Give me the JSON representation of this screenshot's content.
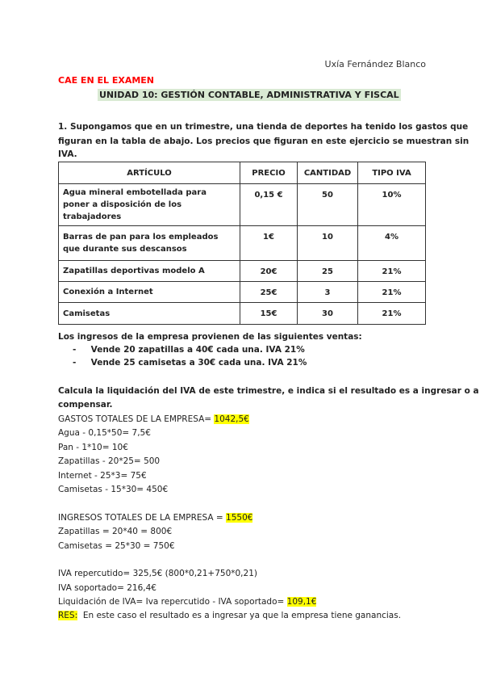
{
  "author": "Uxía Fernández Blanco",
  "tag": "CAE EN EL EXAMEN",
  "unit_title": "UNIDAD 10: GESTIÓN CONTABLE, ADMINISTRATIVA Y FISCAL",
  "question": [
    "1. Supongamos que en un trimestre, una tienda de deportes ha tenido los gastos que",
    "figuran en la tabla de abajo. Los precios que figuran en este ejercicio se muestran sin",
    "IVA."
  ],
  "table": {
    "headers": [
      "ARTÍCULO",
      "PRECIO",
      "CANTIDAD",
      "TIPO IVA"
    ],
    "rows": [
      [
        "Agua mineral embotellada para poner a disposición de los trabajadores",
        "0,15 €",
        "50",
        "10%"
      ],
      [
        "Barras de pan para los empleados que durante sus descansos",
        "1€",
        "10",
        "4%"
      ],
      [
        "Zapatillas deportivas modelo A",
        "20€",
        "25",
        "21%"
      ],
      [
        "Conexión a Internet",
        "25€",
        "3",
        "21%"
      ],
      [
        "Camisetas",
        "15€",
        "30",
        "21%"
      ]
    ]
  },
  "income_intro": "Los ingresos de la empresa provienen de las siguientes ventas:",
  "sales": [
    "Vende 20 zapatillas a 40€ cada una. IVA 21%",
    "Vende 25 camisetas a 30€ cada una. IVA 21%"
  ],
  "task": [
    "Calcula la liquidación del IVA de este trimestre, e indica si el resultado es a ingresar o a",
    "compensar."
  ],
  "gastos_label": "GASTOS TOTALES DE LA EMPRESA= ",
  "gastos_total": "1042,5€",
  "gastos_lines": [
    "Agua - 0,15*50= 7,5€",
    "Pan - 1*10= 10€",
    "Zapatillas - 20*25= 500",
    "Internet - 25*3= 75€",
    "Camisetas - 15*30= 450€"
  ],
  "ingresos_label": "INGRESOS TOTALES DE LA EMPRESA = ",
  "ingresos_total": "1550€",
  "ingresos_lines": [
    "Zapatillas = 20*40 = 800€",
    "Camisetas = 25*30 = 750€"
  ],
  "iva_rep": "IVA repercutido= 325,5€  (800*0,21+750*0,21)",
  "iva_sop": "IVA soportado= 216,4€",
  "liq_label": "Liquidación de IVA= Iva repercutido - IVA soportado= ",
  "liq_total": "109,1€",
  "res_label": "RES:",
  "res_text": "  En este caso el resultado es a ingresar ya que la empresa tiene ganancias.",
  "colors": {
    "tag": "#ff0000",
    "unit_bg": "#d9ead3",
    "highlight": "#ffff00"
  }
}
